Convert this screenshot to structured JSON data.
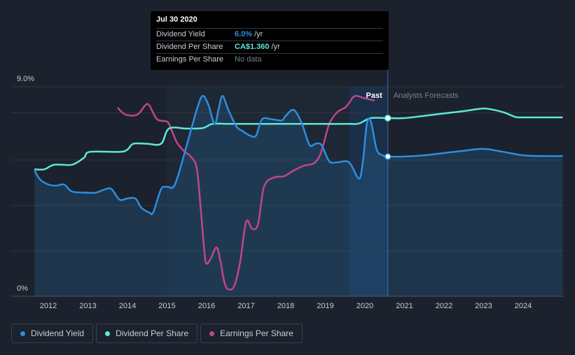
{
  "tooltip": {
    "date": "Jul 30 2020",
    "rows": [
      {
        "label": "Dividend Yield",
        "value": "6.0%",
        "unit": "/yr"
      },
      {
        "label": "Dividend Per Share",
        "value": "CA$1.360",
        "unit": "/yr"
      },
      {
        "label": "Earnings Per Share",
        "value": "No data"
      }
    ]
  },
  "legend": [
    {
      "label": "Dividend Yield",
      "color": "#2c8ee0"
    },
    {
      "label": "Dividend Per Share",
      "color": "#5ce8d6"
    },
    {
      "label": "Earnings Per Share",
      "color": "#c0458c"
    }
  ],
  "chart_data": {
    "type": "line",
    "y_top_label": "9.0%",
    "y_bottom_label": "0%",
    "ylim": [
      0,
      9
    ],
    "xlim": [
      2011.3,
      2025.0
    ],
    "x_ticks": [
      "2012",
      "2013",
      "2014",
      "2015",
      "2016",
      "2017",
      "2018",
      "2019",
      "2020",
      "2021",
      "2022",
      "2023",
      "2024"
    ],
    "past_label": "Past",
    "forecast_label": "Analysts Forecasts",
    "forecast_start": 2020.58,
    "highlight_start": 2019.6,
    "series": [
      {
        "name": "Dividend Yield",
        "color": "#2c8ee0",
        "points": [
          [
            2011.65,
            5.4
          ],
          [
            2011.8,
            5.0
          ],
          [
            2012.0,
            4.8
          ],
          [
            2012.2,
            4.75
          ],
          [
            2012.4,
            4.8
          ],
          [
            2012.6,
            4.5
          ],
          [
            2013.0,
            4.45
          ],
          [
            2013.2,
            4.45
          ],
          [
            2013.45,
            4.6
          ],
          [
            2013.6,
            4.6
          ],
          [
            2013.8,
            4.15
          ],
          [
            2014.0,
            4.2
          ],
          [
            2014.2,
            4.2
          ],
          [
            2014.35,
            3.8
          ],
          [
            2014.55,
            3.6
          ],
          [
            2014.65,
            3.6
          ],
          [
            2014.85,
            4.6
          ],
          [
            2015.0,
            4.7
          ],
          [
            2015.2,
            4.8
          ],
          [
            2015.5,
            6.5
          ],
          [
            2015.75,
            8.0
          ],
          [
            2015.9,
            8.6
          ],
          [
            2016.05,
            8.2
          ],
          [
            2016.2,
            7.4
          ],
          [
            2016.3,
            8.0
          ],
          [
            2016.4,
            8.6
          ],
          [
            2016.55,
            8.0
          ],
          [
            2016.75,
            7.3
          ],
          [
            2016.9,
            7.1
          ],
          [
            2017.1,
            6.9
          ],
          [
            2017.25,
            6.9
          ],
          [
            2017.4,
            7.6
          ],
          [
            2017.65,
            7.6
          ],
          [
            2017.9,
            7.55
          ],
          [
            2018.0,
            7.75
          ],
          [
            2018.2,
            8.0
          ],
          [
            2018.4,
            7.45
          ],
          [
            2018.6,
            6.5
          ],
          [
            2018.75,
            6.55
          ],
          [
            2018.9,
            6.5
          ],
          [
            2019.1,
            5.8
          ],
          [
            2019.3,
            5.75
          ],
          [
            2019.6,
            5.75
          ],
          [
            2019.85,
            5.05
          ],
          [
            2019.95,
            5.8
          ],
          [
            2020.05,
            7.4
          ],
          [
            2020.15,
            7.5
          ],
          [
            2020.3,
            6.3
          ],
          [
            2020.45,
            6.05
          ],
          [
            2020.58,
            6.0
          ],
          [
            2021.0,
            6.0
          ],
          [
            2021.5,
            6.05
          ],
          [
            2022.0,
            6.15
          ],
          [
            2022.5,
            6.25
          ],
          [
            2023.0,
            6.33
          ],
          [
            2023.5,
            6.2
          ],
          [
            2024.0,
            6.05
          ],
          [
            2024.5,
            6.02
          ],
          [
            2025.0,
            6.02
          ]
        ]
      },
      {
        "name": "Dividend Per Share",
        "color": "#5ce8d6",
        "points": [
          [
            2011.65,
            5.45
          ],
          [
            2011.9,
            5.45
          ],
          [
            2012.15,
            5.65
          ],
          [
            2012.6,
            5.65
          ],
          [
            2012.9,
            5.95
          ],
          [
            2013.05,
            6.2
          ],
          [
            2013.8,
            6.2
          ],
          [
            2014.0,
            6.3
          ],
          [
            2014.15,
            6.55
          ],
          [
            2014.5,
            6.55
          ],
          [
            2014.85,
            6.55
          ],
          [
            2015.05,
            7.2
          ],
          [
            2015.5,
            7.2
          ],
          [
            2015.9,
            7.22
          ],
          [
            2016.15,
            7.4
          ],
          [
            2016.6,
            7.4
          ],
          [
            2017.0,
            7.4
          ],
          [
            2017.6,
            7.4
          ],
          [
            2018.0,
            7.4
          ],
          [
            2018.5,
            7.4
          ],
          [
            2019.0,
            7.4
          ],
          [
            2019.6,
            7.4
          ],
          [
            2019.85,
            7.42
          ],
          [
            2020.15,
            7.65
          ],
          [
            2020.58,
            7.65
          ],
          [
            2021.0,
            7.65
          ],
          [
            2021.5,
            7.75
          ],
          [
            2022.0,
            7.85
          ],
          [
            2022.5,
            7.95
          ],
          [
            2022.9,
            8.05
          ],
          [
            2023.1,
            8.05
          ],
          [
            2023.5,
            7.9
          ],
          [
            2023.8,
            7.7
          ],
          [
            2024.0,
            7.68
          ],
          [
            2024.5,
            7.68
          ],
          [
            2025.0,
            7.68
          ]
        ]
      },
      {
        "name": "Earnings Per Share",
        "color": "#c0458c",
        "points": [
          [
            2013.75,
            8.1
          ],
          [
            2013.95,
            7.8
          ],
          [
            2014.25,
            7.8
          ],
          [
            2014.45,
            8.2
          ],
          [
            2014.55,
            8.2
          ],
          [
            2014.75,
            7.6
          ],
          [
            2015.0,
            7.5
          ],
          [
            2015.1,
            7.2
          ],
          [
            2015.25,
            6.6
          ],
          [
            2015.45,
            6.2
          ],
          [
            2015.6,
            6.0
          ],
          [
            2015.75,
            5.5
          ],
          [
            2015.85,
            3.8
          ],
          [
            2015.95,
            1.8
          ],
          [
            2016.0,
            1.4
          ],
          [
            2016.1,
            1.6
          ],
          [
            2016.25,
            2.1
          ],
          [
            2016.35,
            1.5
          ],
          [
            2016.45,
            0.6
          ],
          [
            2016.55,
            0.3
          ],
          [
            2016.7,
            0.45
          ],
          [
            2016.85,
            1.5
          ],
          [
            2017.0,
            3.2
          ],
          [
            2017.15,
            2.9
          ],
          [
            2017.3,
            3.1
          ],
          [
            2017.45,
            4.7
          ],
          [
            2017.7,
            5.1
          ],
          [
            2017.95,
            5.15
          ],
          [
            2018.2,
            5.4
          ],
          [
            2018.45,
            5.6
          ],
          [
            2018.7,
            5.7
          ],
          [
            2018.85,
            6.0
          ],
          [
            2018.95,
            6.5
          ],
          [
            2019.1,
            7.4
          ],
          [
            2019.3,
            7.9
          ],
          [
            2019.5,
            8.1
          ],
          [
            2019.6,
            8.3
          ],
          [
            2019.75,
            8.6
          ],
          [
            2020.0,
            8.5
          ],
          [
            2020.25,
            8.4
          ]
        ]
      }
    ]
  }
}
